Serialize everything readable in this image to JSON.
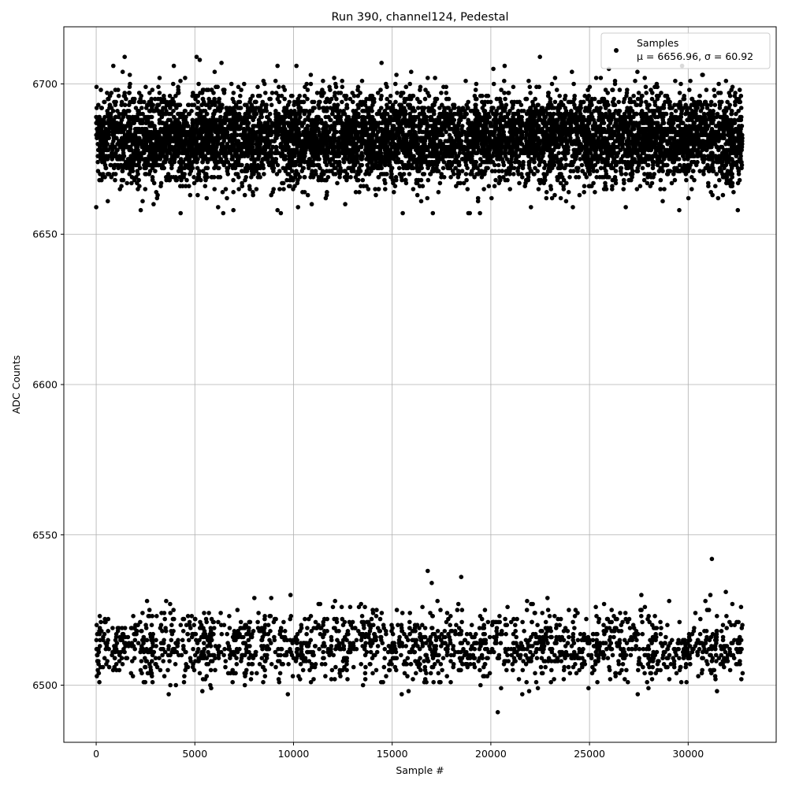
{
  "chart_data": {
    "type": "scatter",
    "title": "Run 390, channel124, Pedestal",
    "xlabel": "Sample #",
    "ylabel": "ADC Counts",
    "xlim": [
      -1640,
      34460
    ],
    "ylim": [
      6481,
      6719
    ],
    "xticks": [
      0,
      5000,
      10000,
      15000,
      20000,
      25000,
      30000
    ],
    "yticks": [
      6500,
      6550,
      6600,
      6650,
      6700
    ],
    "grid": true,
    "legend": {
      "placement": "top-right",
      "entries": [
        {
          "label": "Samples",
          "stats": "μ = 6656.96, σ = 60.92"
        }
      ]
    },
    "series": [
      {
        "name": "Samples",
        "color": "#000000",
        "x_range": [
          0,
          32767
        ],
        "bands": [
          {
            "fraction": 0.8,
            "center": 6682,
            "spread": 7.5,
            "min": 6657,
            "max": 6709
          },
          {
            "fraction": 0.2,
            "center": 6513,
            "spread": 6,
            "min": 6491,
            "max": 6542
          }
        ],
        "notable_points": [
          {
            "x": 0,
            "y": 6659
          },
          {
            "x": 5250,
            "y": 6708
          },
          {
            "x": 6350,
            "y": 6707
          },
          {
            "x": 10150,
            "y": 6706
          },
          {
            "x": 19450,
            "y": 6657
          },
          {
            "x": 20350,
            "y": 6491
          },
          {
            "x": 20700,
            "y": 6706
          },
          {
            "x": 31200,
            "y": 6542
          },
          {
            "x": 16800,
            "y": 6538
          },
          {
            "x": 18500,
            "y": 6536
          }
        ]
      }
    ]
  }
}
